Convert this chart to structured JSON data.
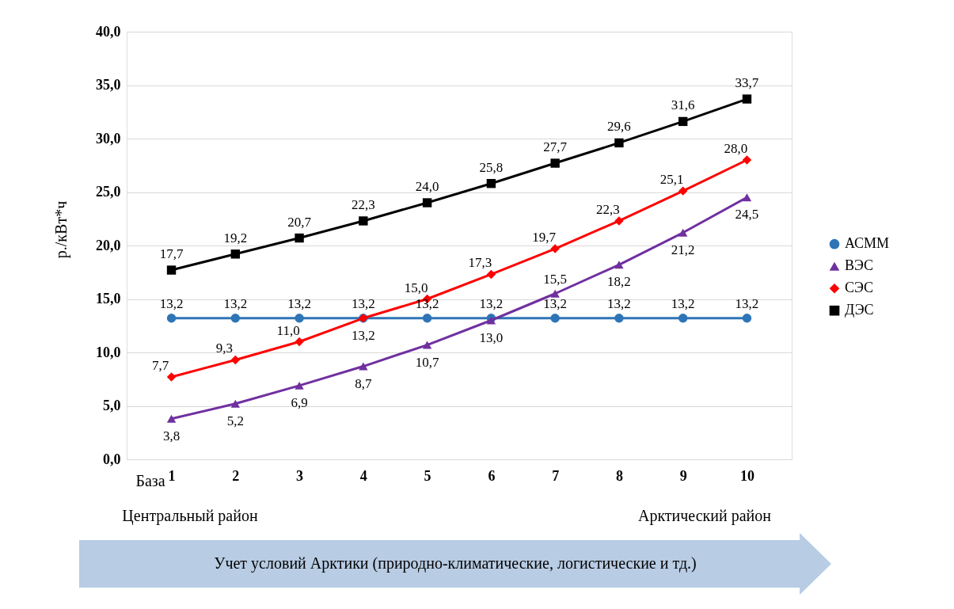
{
  "chart_data": {
    "type": "line",
    "ylabel": "р./кВт*ч",
    "categories": [
      "1",
      "2",
      "3",
      "4",
      "5",
      "6",
      "7",
      "8",
      "9",
      "10"
    ],
    "ylim": [
      0,
      40
    ],
    "yticks": [
      {
        "value": 0,
        "label": "0,0"
      },
      {
        "value": 5,
        "label": "5,0"
      },
      {
        "value": 10,
        "label": "10,0"
      },
      {
        "value": 15,
        "label": "15,0"
      },
      {
        "value": 20,
        "label": "20,0"
      },
      {
        "value": 25,
        "label": "25,0"
      },
      {
        "value": 30,
        "label": "30,0"
      },
      {
        "value": 35,
        "label": "35,0"
      },
      {
        "value": 40,
        "label": "40,0"
      }
    ],
    "grid": "y",
    "legend": "right",
    "series": [
      {
        "name": "АСММ",
        "color": "#2e75b6",
        "marker": "circle",
        "values": [
          13.2,
          13.2,
          13.2,
          13.2,
          13.2,
          13.2,
          13.2,
          13.2,
          13.2,
          13.2
        ],
        "value_labels": [
          "13,2",
          "13,2",
          "13,2",
          "13,2",
          "13,2",
          "13,2",
          "13,2",
          "13,2",
          "13,2",
          "13,2"
        ]
      },
      {
        "name": "ВЭС",
        "color": "#7030a0",
        "marker": "triangle",
        "values": [
          3.8,
          5.2,
          6.9,
          8.7,
          10.7,
          13.0,
          15.5,
          18.2,
          21.2,
          24.5
        ],
        "value_labels": [
          "3,8",
          "5,2",
          "6,9",
          "8,7",
          "10,7",
          "13,0",
          "15,5",
          "18,2",
          "21,2",
          "24,5"
        ]
      },
      {
        "name": "СЭС",
        "color": "#ff0000",
        "marker": "diamond",
        "values": [
          7.7,
          9.3,
          11.0,
          13.2,
          15.0,
          17.3,
          19.7,
          22.3,
          25.1,
          28.0
        ],
        "value_labels": [
          "7,7",
          "9,3",
          "11,0",
          "13,2",
          "15,0",
          "17,3",
          "19,7",
          "22,3",
          "25,1",
          "28,0"
        ]
      },
      {
        "name": "ДЭС",
        "color": "#000000",
        "marker": "square",
        "values": [
          17.7,
          19.2,
          20.7,
          22.3,
          24.0,
          25.8,
          27.7,
          29.6,
          31.6,
          33.7
        ],
        "value_labels": [
          "17,7",
          "19,2",
          "20,7",
          "22,3",
          "24,0",
          "25,8",
          "27,7",
          "29,6",
          "31,6",
          "33,7"
        ]
      }
    ],
    "annotations": [
      "База",
      "Центральный район",
      "Арктический район",
      "Учет условий Арктики (природно-климатические, логистические и тд.)"
    ]
  }
}
